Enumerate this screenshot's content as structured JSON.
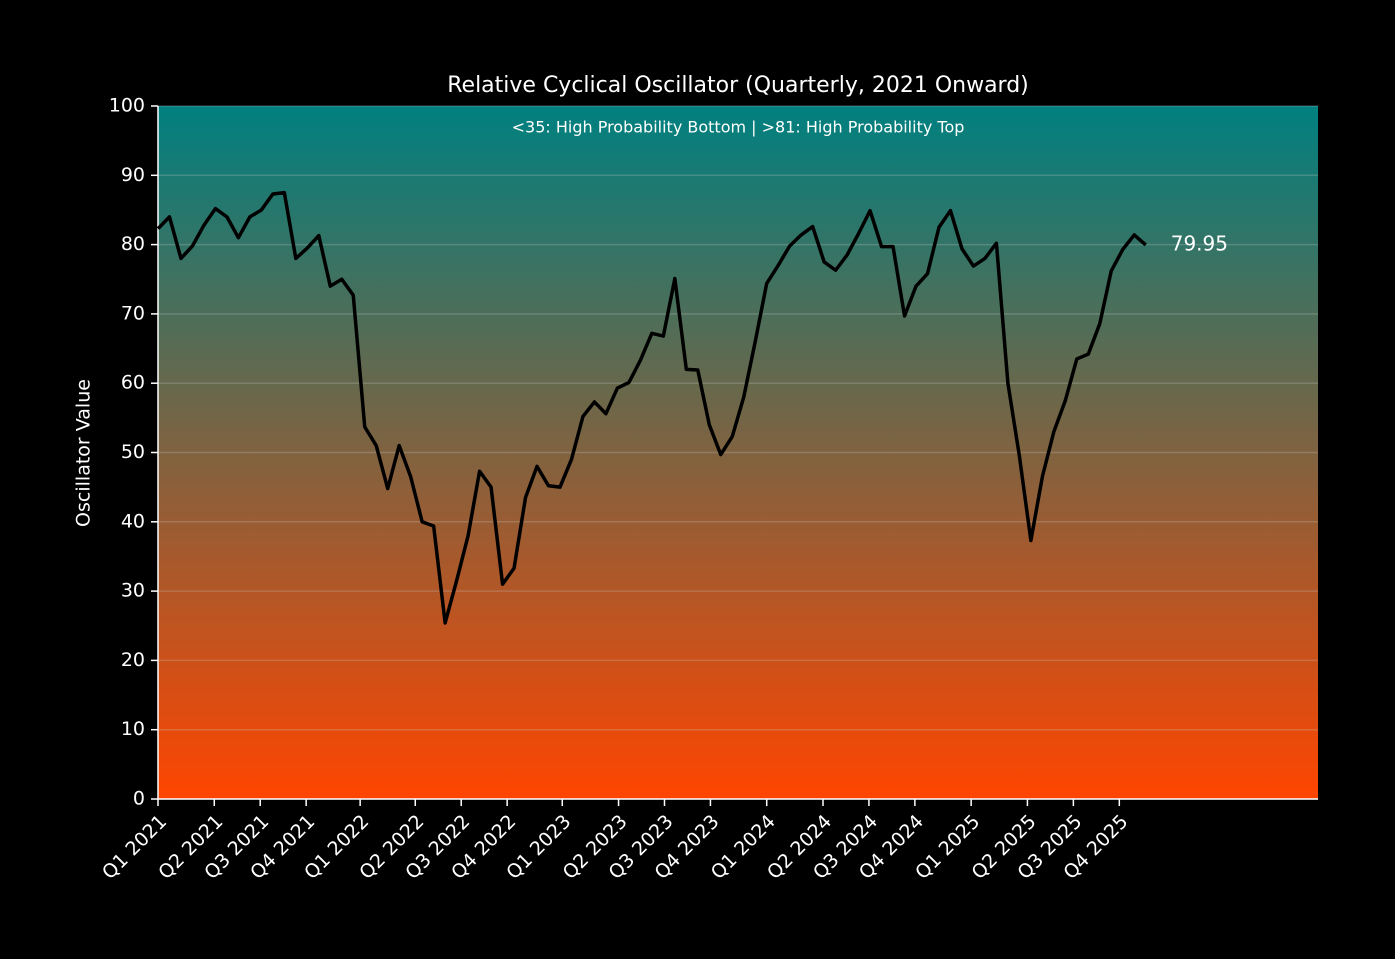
{
  "chart_data": {
    "type": "line",
    "title": "Relative Cyclical Oscillator (Quarterly, 2021 Onward)",
    "annotation": "<35: High Probability Bottom | >81: High Probability Top",
    "y_label": "Oscillator Value",
    "x": [
      0,
      1,
      2,
      3,
      4,
      5,
      6,
      7,
      8,
      9,
      10,
      11,
      12,
      13,
      14,
      15,
      16,
      17,
      18,
      19,
      20,
      21,
      22,
      23,
      24,
      25,
      26,
      27,
      28,
      29,
      30,
      31,
      32,
      33,
      34,
      35,
      36,
      37,
      38,
      39,
      40,
      41,
      42,
      43,
      44,
      45,
      46,
      47,
      48,
      49,
      50,
      51,
      52,
      53,
      54,
      55,
      56,
      57,
      58,
      59,
      60,
      61,
      62,
      63,
      64,
      65,
      66,
      67,
      68,
      69,
      70,
      71,
      72,
      73,
      74,
      75,
      76,
      77,
      78,
      79,
      80,
      81,
      82,
      83,
      84,
      85,
      86
    ],
    "values": [
      82.3,
      84,
      78,
      79.8,
      82.8,
      85.2,
      84,
      81,
      84,
      85,
      87.3,
      87.5,
      78,
      79.5,
      81.3,
      74,
      75,
      72.7,
      53.7,
      51,
      44.8,
      51,
      46.5,
      40,
      39.4,
      25.4,
      31.5,
      38,
      47.3,
      45,
      31,
      33.3,
      43.5,
      48,
      45.2,
      45,
      49,
      55.2,
      57.3,
      55.6,
      59.3,
      60.1,
      63.3,
      67.2,
      66.8,
      75.1,
      62,
      61.9,
      54,
      49.7,
      52.3,
      58,
      66,
      74.4,
      77,
      79.8,
      81.4,
      82.6,
      77.5,
      76.3,
      78.5,
      81.6,
      84.9,
      79.7,
      79.7,
      69.7,
      74,
      75.8,
      82.5,
      84.9,
      79.4,
      76.9,
      78,
      80.2,
      60,
      49.5,
      37.3,
      46.5,
      53,
      57.5,
      63.5,
      64.2,
      68.6,
      76.2,
      79.3,
      81.4,
      79.95
    ],
    "color": "#000000",
    "xlim": [
      0,
      101
    ],
    "xticks": [
      {
        "value": 0,
        "label": "Q1 2021"
      },
      {
        "value": 4.9,
        "label": "Q2 2021"
      },
      {
        "value": 8.9,
        "label": "Q3 2021"
      },
      {
        "value": 12.9,
        "label": "Q4 2021"
      },
      {
        "value": 17.6,
        "label": "Q1 2022"
      },
      {
        "value": 22.4,
        "label": "Q2 2022"
      },
      {
        "value": 26.4,
        "label": "Q3 2022"
      },
      {
        "value": 30.4,
        "label": "Q4 2022"
      },
      {
        "value": 35.2,
        "label": "Q1 2023"
      },
      {
        "value": 40.1,
        "label": "Q2 2023"
      },
      {
        "value": 44.1,
        "label": "Q3 2023"
      },
      {
        "value": 48.1,
        "label": "Q4 2023"
      },
      {
        "value": 53,
        "label": "Q1 2024"
      },
      {
        "value": 57.9,
        "label": "Q2 2024"
      },
      {
        "value": 61.9,
        "label": "Q3 2024"
      },
      {
        "value": 65.9,
        "label": "Q4 2024"
      },
      {
        "value": 70.8,
        "label": "Q1 2025"
      },
      {
        "value": 75.7,
        "label": "Q2 2025"
      },
      {
        "value": 79.7,
        "label": "Q3 2025"
      },
      {
        "value": 83.7,
        "label": "Q4 2025"
      }
    ],
    "ylim": [
      0,
      100
    ],
    "yticks": [
      0,
      10,
      20,
      30,
      40,
      50,
      60,
      70,
      80,
      90,
      100
    ],
    "grid": true,
    "background_gradient": [
      "#008080",
      "#ff4500"
    ]
  }
}
